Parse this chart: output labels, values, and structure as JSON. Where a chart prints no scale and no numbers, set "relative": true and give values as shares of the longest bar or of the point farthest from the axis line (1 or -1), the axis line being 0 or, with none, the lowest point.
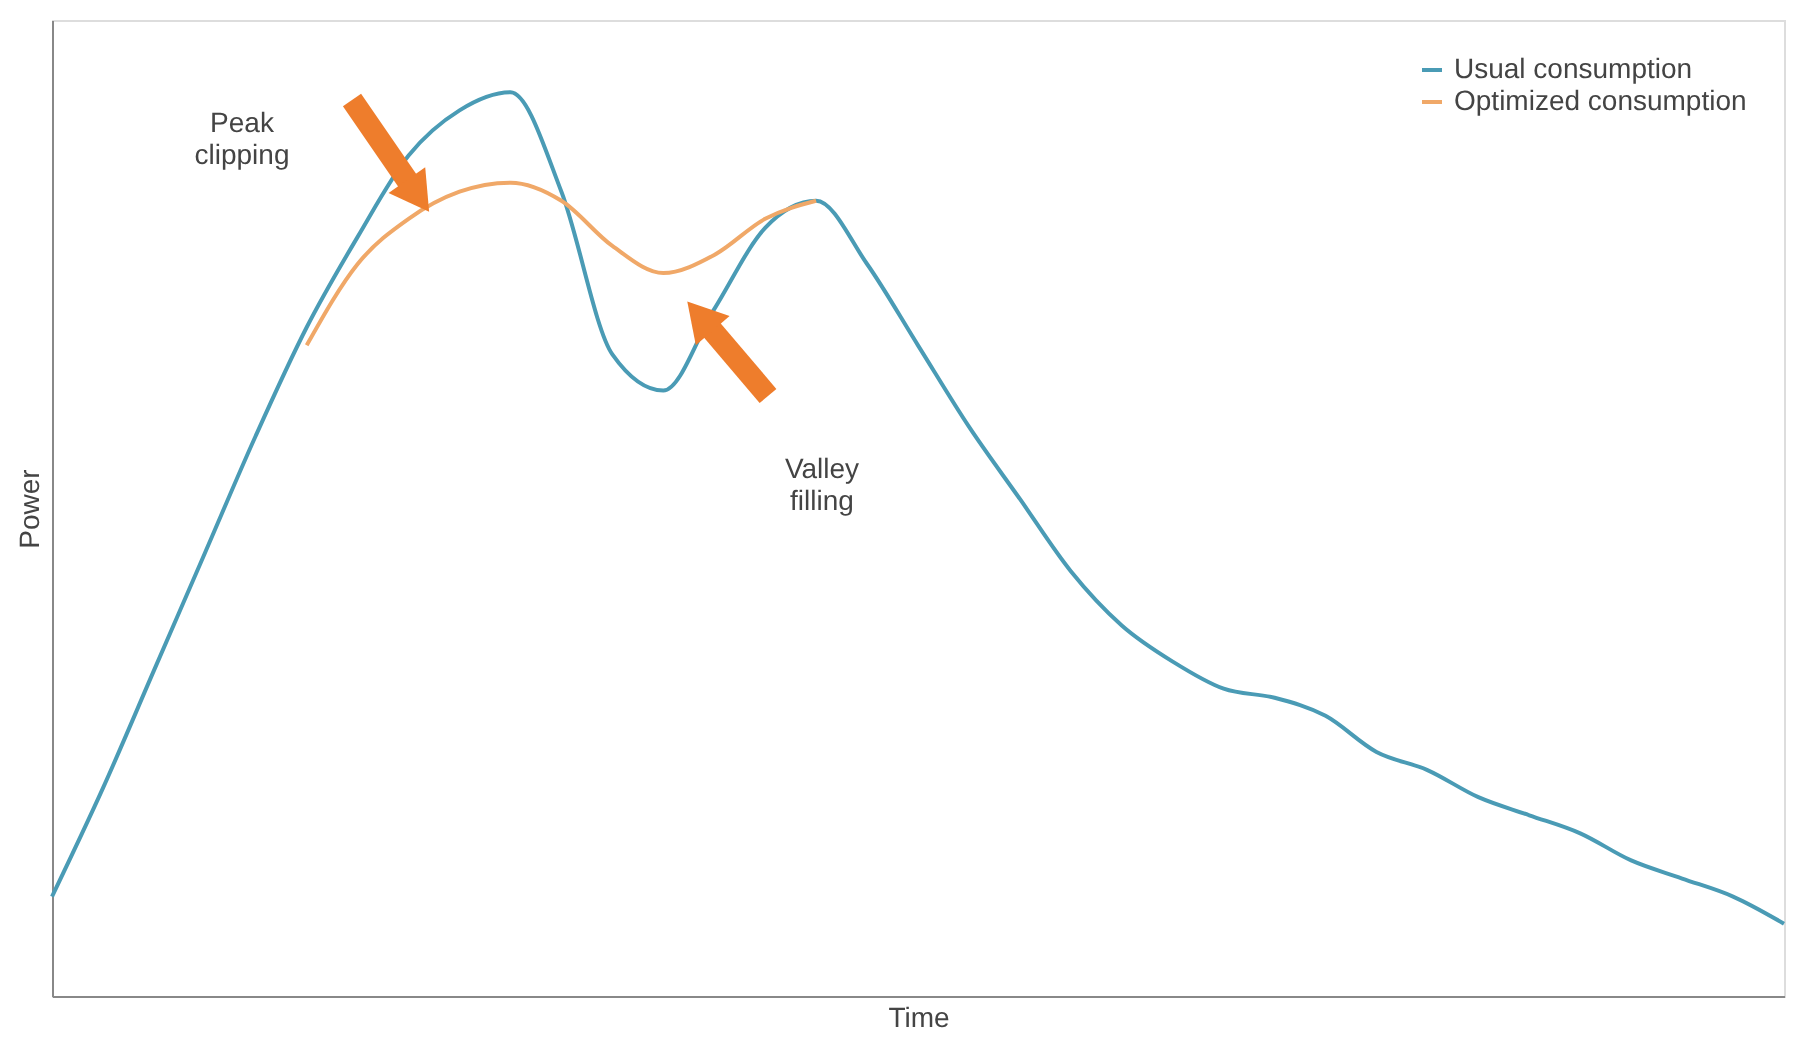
{
  "chart_data": {
    "type": "line",
    "relative": true,
    "xlabel": "Time",
    "ylabel": "Power",
    "categories": [
      null,
      null,
      null,
      null,
      null,
      null,
      null,
      null,
      null,
      null,
      null,
      null,
      null,
      null,
      null,
      null,
      null,
      null,
      null,
      null,
      null,
      null,
      null,
      null,
      null,
      null,
      null,
      null,
      null,
      null,
      null,
      null,
      null,
      null,
      null
    ],
    "series": [
      {
        "name": "Usual consumption",
        "color": "#4a9bb5",
        "values": [
          0.11,
          0.23,
          0.36,
          0.49,
          0.62,
          0.74,
          0.84,
          0.93,
          0.98,
          1.0,
          0.89,
          0.71,
          0.67,
          0.76,
          0.85,
          0.88,
          0.81,
          0.72,
          0.63,
          0.55,
          0.47,
          0.41,
          0.37,
          0.34,
          0.33,
          0.31,
          0.27,
          0.25,
          0.22,
          0.2,
          0.18,
          0.15,
          0.13,
          0.11,
          0.08
        ]
      },
      {
        "name": "Optimized consumption",
        "color": "#f0a868",
        "values": [
          null,
          null,
          null,
          null,
          null,
          0.72,
          0.81,
          0.86,
          0.89,
          0.9,
          0.88,
          0.83,
          0.8,
          0.82,
          0.86,
          0.88,
          null,
          null,
          null,
          null,
          null,
          null,
          null,
          null,
          null,
          null,
          null,
          null,
          null,
          null,
          null,
          null,
          null,
          null,
          null
        ]
      }
    ],
    "annotations": [
      "Peak clipping",
      "Valley filling"
    ],
    "legend": "top right",
    "grid": false,
    "marker": "none",
    "line_style": "solid"
  }
}
